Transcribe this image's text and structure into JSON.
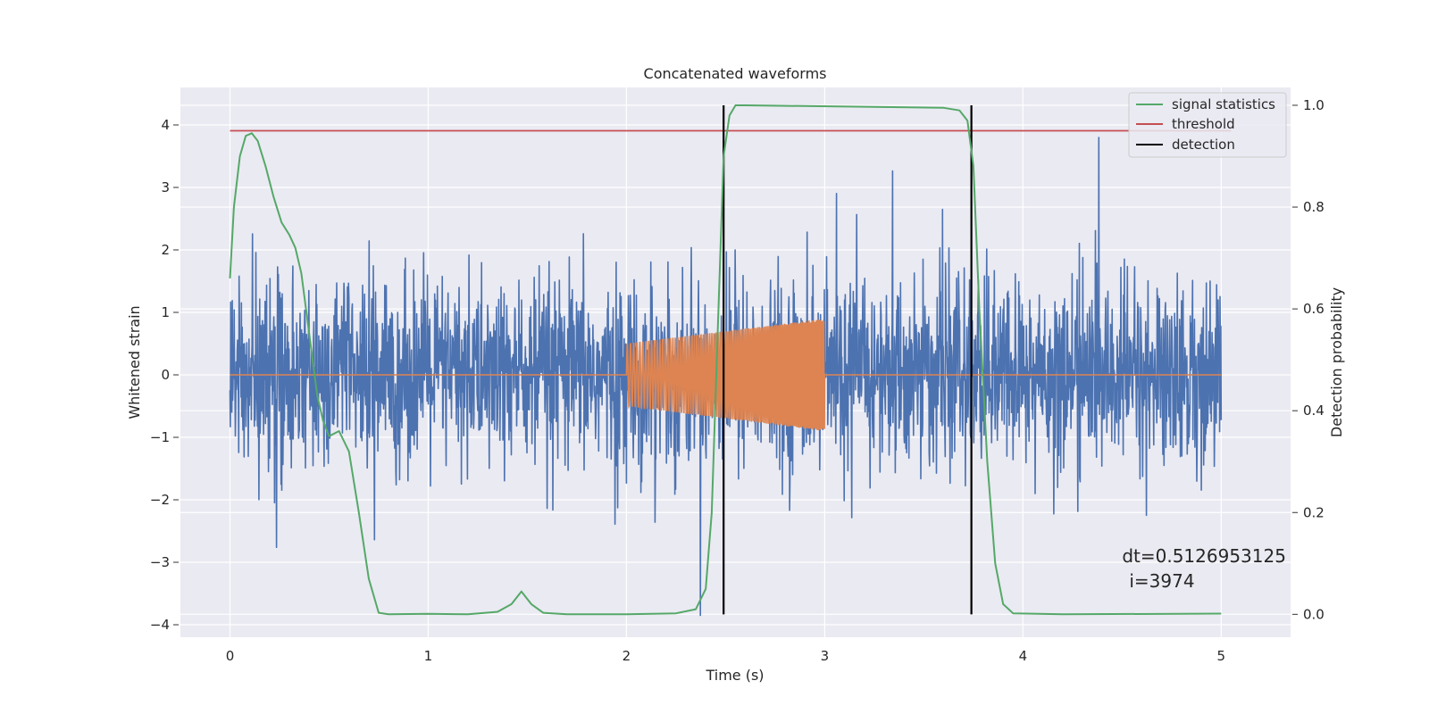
{
  "chart_data": {
    "type": "line",
    "title": "Concatenated waveforms",
    "xlabel": "Time (s)",
    "ylabel_left": "Whitened strain",
    "ylabel_right": "Detection probability",
    "xlim": [
      -0.25,
      5.35
    ],
    "ylim_left": [
      -4.2,
      4.6
    ],
    "ylim_right": [
      -0.045,
      1.035
    ],
    "x_ticks": [
      0,
      1,
      2,
      3,
      4,
      5
    ],
    "x_tick_labels": [
      "0",
      "1",
      "2",
      "3",
      "4",
      "5"
    ],
    "y_left_ticks": [
      4,
      3,
      2,
      1,
      0,
      -1,
      -2,
      -3,
      -4
    ],
    "y_left_tick_labels": [
      "4",
      "3",
      "2",
      "1",
      "0",
      "−1",
      "−2",
      "−3",
      "−4"
    ],
    "y_right_ticks": [
      1.0,
      0.8,
      0.6,
      0.4,
      0.2,
      0.0
    ],
    "y_right_tick_labels": [
      "1.0",
      "0.8",
      "0.6",
      "0.4",
      "0.2",
      "0.0"
    ],
    "grid": true,
    "legend_position": "top-right",
    "series": [
      {
        "name": "",
        "axis": "left",
        "color": "#4c72b0",
        "description_kind": "noise",
        "x_range": [
          0,
          5
        ],
        "std": 0.72,
        "peak_max": 3.8,
        "peak_min": -3.85
      },
      {
        "name": "",
        "axis": "left",
        "color": "#dd8452",
        "description_kind": "chirp",
        "x_range": [
          0,
          5
        ],
        "active_range": [
          2.0,
          3.0
        ],
        "amp_start": 0.5,
        "amp_end": 0.9
      },
      {
        "name": "signal statistics",
        "axis": "right",
        "color": "#55a868",
        "x": [
          0,
          0.02,
          0.05,
          0.08,
          0.11,
          0.14,
          0.18,
          0.22,
          0.26,
          0.3,
          0.33,
          0.36,
          0.4,
          0.44,
          0.47,
          0.5,
          0.55,
          0.6,
          0.65,
          0.7,
          0.75,
          0.8,
          1.0,
          1.2,
          1.35,
          1.42,
          1.47,
          1.52,
          1.58,
          1.7,
          2.0,
          2.25,
          2.35,
          2.4,
          2.43,
          2.46,
          2.49,
          2.52,
          2.55,
          2.6,
          3.6,
          3.68,
          3.72,
          3.75,
          3.78,
          3.82,
          3.86,
          3.9,
          3.95,
          4.2,
          5.0
        ],
        "y": [
          0.66,
          0.8,
          0.9,
          0.94,
          0.945,
          0.93,
          0.88,
          0.82,
          0.77,
          0.745,
          0.72,
          0.67,
          0.55,
          0.43,
          0.38,
          0.35,
          0.36,
          0.32,
          0.2,
          0.07,
          0.003,
          0.0,
          0.001,
          0.0,
          0.005,
          0.02,
          0.045,
          0.02,
          0.003,
          0.0,
          0.0,
          0.002,
          0.01,
          0.05,
          0.2,
          0.55,
          0.9,
          0.98,
          1.0,
          1.0,
          0.995,
          0.99,
          0.97,
          0.88,
          0.6,
          0.3,
          0.1,
          0.02,
          0.002,
          0.0,
          0.0015
        ]
      },
      {
        "name": "threshold",
        "axis": "right",
        "color": "#c44e52",
        "x": [
          0,
          5.05
        ],
        "y": [
          0.95,
          0.95
        ]
      },
      {
        "name": "detection",
        "axis": "right",
        "color": "#000000",
        "vlines": [
          2.49,
          3.74
        ],
        "y_range": [
          0.0,
          1.0
        ]
      }
    ],
    "annotation": {
      "line1": "dt=0.5126953125",
      "line2": "i=3974",
      "x": 4.5,
      "y": -3.0
    }
  }
}
